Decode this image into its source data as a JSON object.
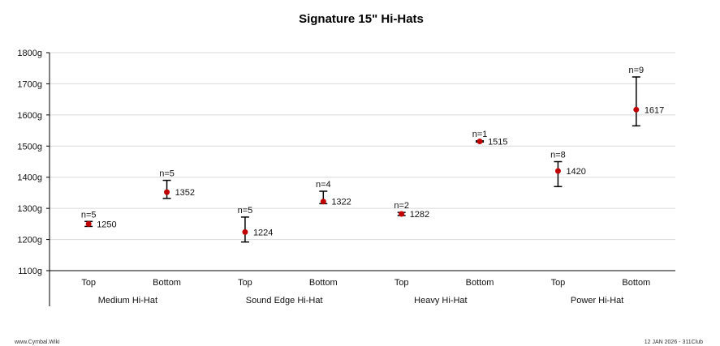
{
  "chart_data": {
    "type": "scatter",
    "title": "Signature 15\" Hi-Hats",
    "xlabel": "",
    "ylabel": "",
    "ylim": [
      1100,
      1800
    ],
    "ytick_labels": [
      "1100g",
      "1200g",
      "1300g",
      "1400g",
      "1500g",
      "1600g",
      "1700g",
      "1800g"
    ],
    "ytick_values": [
      1100,
      1200,
      1300,
      1400,
      1500,
      1600,
      1700,
      1800
    ],
    "grid": true,
    "groups": [
      "Medium Hi-Hat",
      "Sound Edge Hi-Hat",
      "Heavy Hi-Hat",
      "Power Hi-Hat"
    ],
    "categories": [
      "Top",
      "Bottom",
      "Top",
      "Bottom",
      "Top",
      "Bottom",
      "Top",
      "Bottom"
    ],
    "points": [
      {
        "group": "Medium Hi-Hat",
        "position": "Top",
        "mean": 1250,
        "min": 1242,
        "max": 1258,
        "n_label": "n=5",
        "value_label": "1250"
      },
      {
        "group": "Medium Hi-Hat",
        "position": "Bottom",
        "mean": 1352,
        "min": 1332,
        "max": 1390,
        "n_label": "n=5",
        "value_label": "1352"
      },
      {
        "group": "Sound Edge Hi-Hat",
        "position": "Top",
        "mean": 1224,
        "min": 1192,
        "max": 1272,
        "n_label": "n=5",
        "value_label": "1224"
      },
      {
        "group": "Sound Edge Hi-Hat",
        "position": "Bottom",
        "mean": 1322,
        "min": 1315,
        "max": 1355,
        "n_label": "n=4",
        "value_label": "1322"
      },
      {
        "group": "Heavy Hi-Hat",
        "position": "Top",
        "mean": 1282,
        "min": 1277,
        "max": 1287,
        "n_label": "n=2",
        "value_label": "1282"
      },
      {
        "group": "Heavy Hi-Hat",
        "position": "Bottom",
        "mean": 1515,
        "min": 1513,
        "max": 1517,
        "n_label": "n=1",
        "value_label": "1515"
      },
      {
        "group": "Power Hi-Hat",
        "position": "Top",
        "mean": 1420,
        "min": 1370,
        "max": 1450,
        "n_label": "n=8",
        "value_label": "1420"
      },
      {
        "group": "Power Hi-Hat",
        "position": "Bottom",
        "mean": 1617,
        "min": 1565,
        "max": 1722,
        "n_label": "n=9",
        "value_label": "1617"
      }
    ],
    "colors": {
      "point": "#c00000",
      "errorbar": "#000000",
      "grid": "#d9d9d9",
      "axis": "#000000"
    }
  },
  "footer": {
    "left": "www.Cymbal.Wiki",
    "right": "12 JAN 2026 - 311Club"
  }
}
